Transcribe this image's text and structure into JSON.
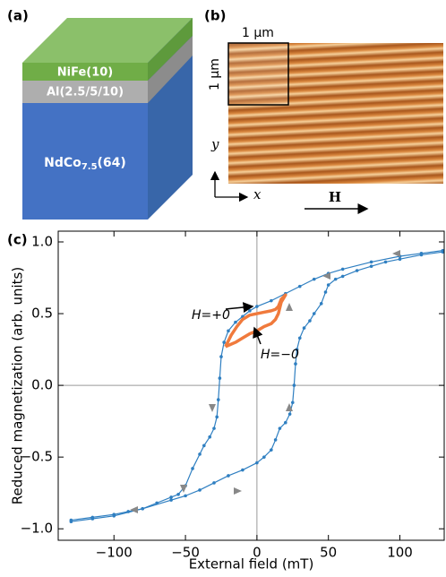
{
  "panel_a": {
    "label": "(a)",
    "layers": [
      {
        "text": "NiFe(10)"
      },
      {
        "text": "Al(2.5/5/10)"
      },
      {
        "text": "NdCo",
        "sub": "7.5",
        "rest": "(64)"
      }
    ]
  },
  "panel_b": {
    "label": "(b)",
    "scale_top": "1 μm",
    "scale_left": "1 μm",
    "axis_y": "y",
    "axis_x": "x",
    "field": "H"
  },
  "chart_data": {
    "type": "line",
    "panel_label": "(c)",
    "xlabel": "External field (mT)",
    "ylabel": "Reduced magnetization (arb. units)",
    "xlim": [
      -139,
      131
    ],
    "ylim": [
      -1.08,
      1.075
    ],
    "xticks": [
      {
        "value": -100,
        "label": "−100"
      },
      {
        "value": -50,
        "label": "−50"
      },
      {
        "value": 0,
        "label": "0"
      },
      {
        "value": 50,
        "label": "50"
      },
      {
        "value": 100,
        "label": "100"
      }
    ],
    "yticks": [
      {
        "value": -1.0,
        "label": "−1.0"
      },
      {
        "value": -0.5,
        "label": "−0.5"
      },
      {
        "value": 0.0,
        "label": "0.0"
      },
      {
        "value": 0.5,
        "label": "0.5"
      },
      {
        "value": 1.0,
        "label": "1.0"
      }
    ],
    "zero_lines": true,
    "series": [
      {
        "color": "#2f7fc1",
        "markers": true,
        "x": [
          130,
          115,
          100,
          80,
          60,
          50,
          40,
          30,
          20,
          10,
          0,
          -5,
          -10,
          -15,
          -20,
          -23,
          -25,
          -26,
          -27,
          -28,
          -30,
          -33,
          -37,
          -40,
          -45,
          -50,
          -55,
          -60,
          -70,
          -80,
          -90,
          -100,
          -115,
          -130
        ],
        "values": [
          0.94,
          0.92,
          0.9,
          0.86,
          0.81,
          0.78,
          0.74,
          0.69,
          0.64,
          0.59,
          0.55,
          0.52,
          0.48,
          0.44,
          0.38,
          0.3,
          0.2,
          0.05,
          -0.1,
          -0.22,
          -0.3,
          -0.36,
          -0.42,
          -0.48,
          -0.58,
          -0.7,
          -0.76,
          -0.78,
          -0.82,
          -0.86,
          -0.88,
          -0.9,
          -0.92,
          -0.94
        ]
      },
      {
        "color": "#2f7fc1",
        "markers": true,
        "x": [
          -130,
          -115,
          -100,
          -80,
          -60,
          -50,
          -40,
          -30,
          -20,
          -10,
          0,
          5,
          10,
          13,
          16,
          20,
          23,
          25,
          26,
          27,
          28,
          30,
          33,
          37,
          40,
          45,
          48,
          50,
          55,
          60,
          70,
          80,
          90,
          100,
          115,
          130
        ],
        "values": [
          -0.95,
          -0.93,
          -0.91,
          -0.86,
          -0.8,
          -0.77,
          -0.73,
          -0.68,
          -0.63,
          -0.59,
          -0.54,
          -0.5,
          -0.45,
          -0.38,
          -0.3,
          -0.26,
          -0.2,
          -0.12,
          0.0,
          0.15,
          0.25,
          0.33,
          0.4,
          0.45,
          0.5,
          0.57,
          0.65,
          0.7,
          0.74,
          0.76,
          0.8,
          0.83,
          0.86,
          0.88,
          0.91,
          0.93
        ]
      },
      {
        "color": "#f07a3c",
        "markers": false,
        "x": [
          -22,
          -18,
          -14,
          -10,
          -5,
          0,
          5,
          10,
          13,
          15,
          17,
          20,
          17,
          15,
          13,
          10,
          5,
          0,
          -5,
          -10,
          -15,
          -22
        ],
        "values": [
          0.27,
          0.35,
          0.41,
          0.46,
          0.49,
          0.5,
          0.51,
          0.52,
          0.53,
          0.55,
          0.6,
          0.63,
          0.58,
          0.5,
          0.46,
          0.43,
          0.41,
          0.38,
          0.36,
          0.33,
          0.3,
          0.27
        ]
      }
    ],
    "annotations": [
      {
        "text": "H=+0"
      },
      {
        "text": "H=−0"
      }
    ]
  }
}
